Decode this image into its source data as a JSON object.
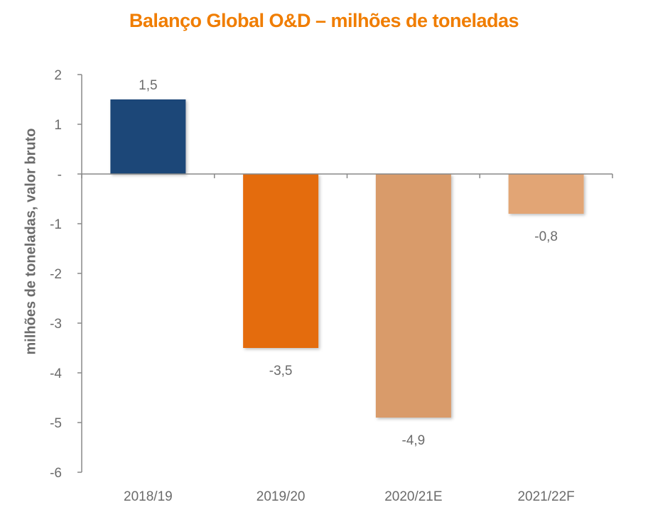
{
  "chart_data": {
    "type": "bar",
    "title": "Balanço Global O&D – milhões de toneladas",
    "xlabel": "",
    "ylabel": "milhões de toneladas, valor bruto",
    "categories": [
      "2018/19",
      "2019/20",
      "2020/21E",
      "2021/22F"
    ],
    "values": [
      1.5,
      -3.5,
      -4.9,
      -0.8
    ],
    "data_labels": [
      "1,5",
      "-3,5",
      "-4,9",
      "-0,8"
    ],
    "bar_colors": [
      "#1F4678",
      "#E46C0A",
      "#D99B6A",
      "#E2A574"
    ],
    "ylim": [
      -6,
      2
    ],
    "yticks": [
      2,
      1,
      0,
      -1,
      -2,
      -3,
      -4,
      -5,
      -6
    ],
    "ytick_labels": [
      "2",
      "1",
      "-",
      "-1",
      "-2",
      "-3",
      "-4",
      "-5",
      "-6"
    ],
    "grid": false,
    "legend": "none",
    "title_color": "#F07D00"
  }
}
